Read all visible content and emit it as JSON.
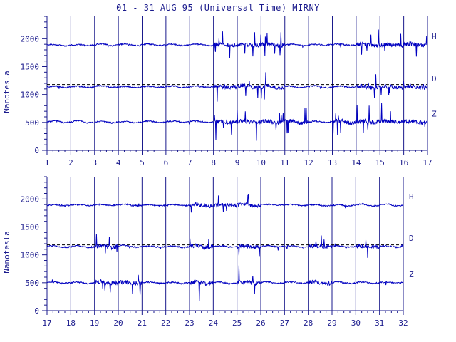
{
  "title": "01 - 31 AUG 95 (Universal Time) MIRNY",
  "colors": {
    "ink": "#1a1a8c",
    "trace": "#0000c0",
    "background": "#ffffff"
  },
  "chart_data": [
    {
      "type": "line",
      "ylabel": "Nanotesla",
      "x_tick_labels": [
        "1",
        "2",
        "3",
        "4",
        "5",
        "6",
        "7",
        "8",
        "9",
        "10",
        "11",
        "12",
        "13",
        "14",
        "15",
        "16",
        "17"
      ],
      "xlim": [
        1,
        17
      ],
      "ylim": [
        0,
        2400
      ],
      "y_tick_labels": [
        "0",
        "500",
        "1000",
        "1500",
        "2000"
      ],
      "grid": "vertical lines at each day",
      "reference_line": 1180,
      "series": [
        {
          "name": "H",
          "baseline": 1890,
          "disturbed_days": [
            8,
            9,
            10,
            14,
            15,
            16
          ]
        },
        {
          "name": "D",
          "baseline": 1140,
          "disturbed_days": [
            8,
            9,
            10,
            14,
            15,
            16
          ]
        },
        {
          "name": "Z",
          "baseline": 510,
          "disturbed_days": [
            8,
            9,
            10,
            11,
            13,
            14,
            15,
            16
          ]
        }
      ]
    },
    {
      "type": "line",
      "ylabel": "Nanotesla",
      "x_tick_labels": [
        "17",
        "18",
        "19",
        "20",
        "21",
        "22",
        "23",
        "24",
        "25",
        "26",
        "27",
        "28",
        "29",
        "30",
        "31",
        "32"
      ],
      "xlim": [
        17,
        32
      ],
      "ylim": [
        0,
        2400
      ],
      "y_tick_labels": [
        "0",
        "500",
        "1000",
        "1500",
        "2000"
      ],
      "grid": "vertical lines at each day",
      "reference_line": 1180,
      "series": [
        {
          "name": "H",
          "baseline": 1890,
          "disturbed_days": [
            23,
            24,
            25
          ]
        },
        {
          "name": "D",
          "baseline": 1150,
          "disturbed_days": [
            19,
            23,
            25,
            28,
            30
          ]
        },
        {
          "name": "Z",
          "baseline": 500,
          "disturbed_days": [
            19,
            20,
            23,
            25,
            28
          ]
        }
      ]
    }
  ]
}
